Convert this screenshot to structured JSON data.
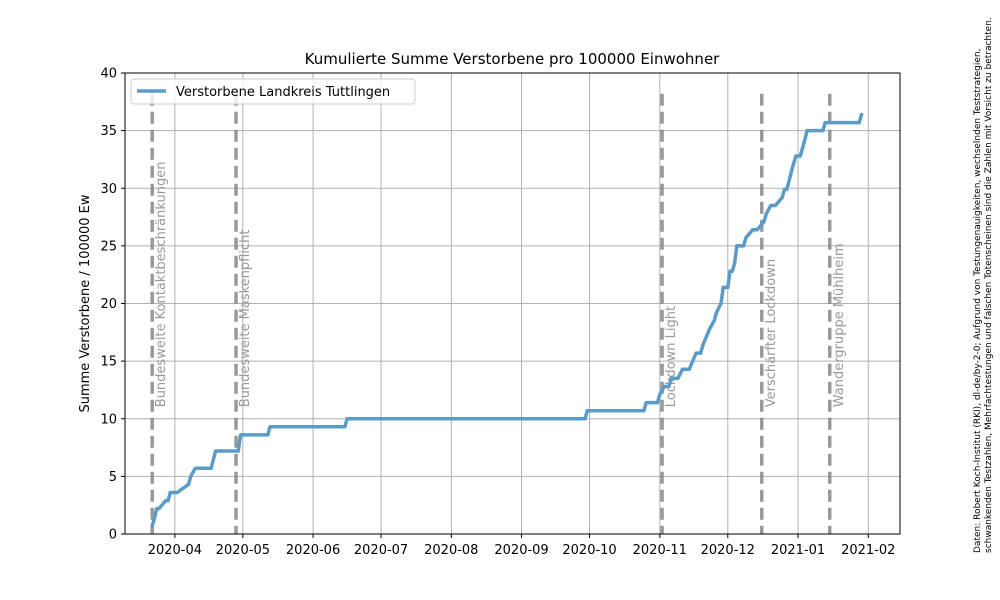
{
  "chart_data": {
    "type": "line",
    "title": "Kumulierte Summe Verstorbene pro 100000 Einwohner",
    "xlabel": "",
    "ylabel": "Summe Verstorbene / 100000 Ew",
    "xlim": [
      "2020-03-10",
      "2021-02-15"
    ],
    "ylim": [
      0,
      40
    ],
    "grid": true,
    "legend_position": "top-left",
    "x_ticks": [
      "2020-04",
      "2020-05",
      "2020-06",
      "2020-07",
      "2020-08",
      "2020-09",
      "2020-10",
      "2020-11",
      "2020-12",
      "2021-01",
      "2021-02"
    ],
    "y_ticks": [
      0,
      5,
      10,
      15,
      20,
      25,
      30,
      35,
      40
    ],
    "series": [
      {
        "name": "Verstorbene Landkreis Tuttlingen",
        "color": "#5b9bc8",
        "x": [
          "2020-03-22",
          "2020-03-23",
          "2020-03-24",
          "2020-03-25",
          "2020-03-28",
          "2020-03-29",
          "2020-03-30",
          "2020-04-02",
          "2020-04-07",
          "2020-04-08",
          "2020-04-10",
          "2020-04-17",
          "2020-04-19",
          "2020-04-29",
          "2020-04-30",
          "2020-05-12",
          "2020-05-13",
          "2020-06-15",
          "2020-06-16",
          "2020-09-29",
          "2020-09-30",
          "2020-10-25",
          "2020-10-26",
          "2020-10-31",
          "2020-11-01",
          "2020-11-03",
          "2020-11-05",
          "2020-11-06",
          "2020-11-09",
          "2020-11-11",
          "2020-11-12",
          "2020-11-14",
          "2020-11-17",
          "2020-11-19",
          "2020-11-20",
          "2020-11-23",
          "2020-11-25",
          "2020-11-26",
          "2020-11-28",
          "2020-11-29",
          "2020-12-01",
          "2020-12-02",
          "2020-12-03",
          "2020-12-04",
          "2020-12-05",
          "2020-12-06",
          "2020-12-07",
          "2020-12-08",
          "2020-12-09",
          "2020-12-12",
          "2020-12-13",
          "2020-12-14",
          "2020-12-17",
          "2020-12-18",
          "2020-12-20",
          "2020-12-21",
          "2020-12-22",
          "2020-12-25",
          "2020-12-26",
          "2020-12-27",
          "2020-12-28",
          "2020-12-29",
          "2020-12-30",
          "2020-12-31",
          "2021-01-02",
          "2021-01-03",
          "2021-01-04",
          "2021-01-05",
          "2021-01-08",
          "2021-01-12",
          "2021-01-13",
          "2021-01-28",
          "2021-01-29"
        ],
        "y": [
          0.7,
          1.4,
          2.2,
          2.2,
          2.9,
          2.9,
          3.6,
          3.6,
          4.3,
          5.0,
          5.7,
          5.7,
          7.2,
          7.2,
          8.6,
          8.6,
          9.3,
          9.3,
          10.0,
          10.0,
          10.7,
          10.7,
          11.4,
          11.4,
          12.1,
          12.8,
          12.8,
          13.5,
          13.5,
          14.3,
          14.3,
          14.3,
          15.7,
          15.7,
          16.4,
          17.8,
          18.5,
          19.2,
          20.0,
          21.4,
          21.4,
          22.8,
          22.8,
          23.5,
          25.0,
          25.0,
          25.0,
          25.0,
          25.7,
          26.4,
          26.4,
          26.4,
          27.1,
          27.8,
          28.5,
          28.5,
          28.5,
          29.2,
          29.9,
          29.9,
          30.6,
          31.4,
          32.1,
          32.8,
          32.8,
          33.5,
          34.2,
          35.0,
          35.0,
          35.0,
          35.7,
          35.7,
          36.4
        ]
      }
    ],
    "events": [
      {
        "date": "2020-03-22",
        "label": "Bundesweite Kontaktbeschränkungen"
      },
      {
        "date": "2020-04-28",
        "label": "Bundesweite Maskenpflicht"
      },
      {
        "date": "2020-11-02",
        "label": "Lockdown Light"
      },
      {
        "date": "2020-12-16",
        "label": "Verschärfter Lockdown"
      },
      {
        "date": "2021-01-15",
        "label": "Wandergruppe Mühlheim"
      }
    ],
    "event_color": "#888888",
    "source_note_lines": [
      "Daten: Robert Koch-Institut (RKI), dl-de/by-2-0; Aufgrund von Testungenauigkeiten, wechselnden Teststrategien,",
      "schwankenden Testzahlen, Mehrfachtestungen und falschen Totenscheinen sind die Zahlen mit Vorsicht zu betrachten."
    ]
  }
}
